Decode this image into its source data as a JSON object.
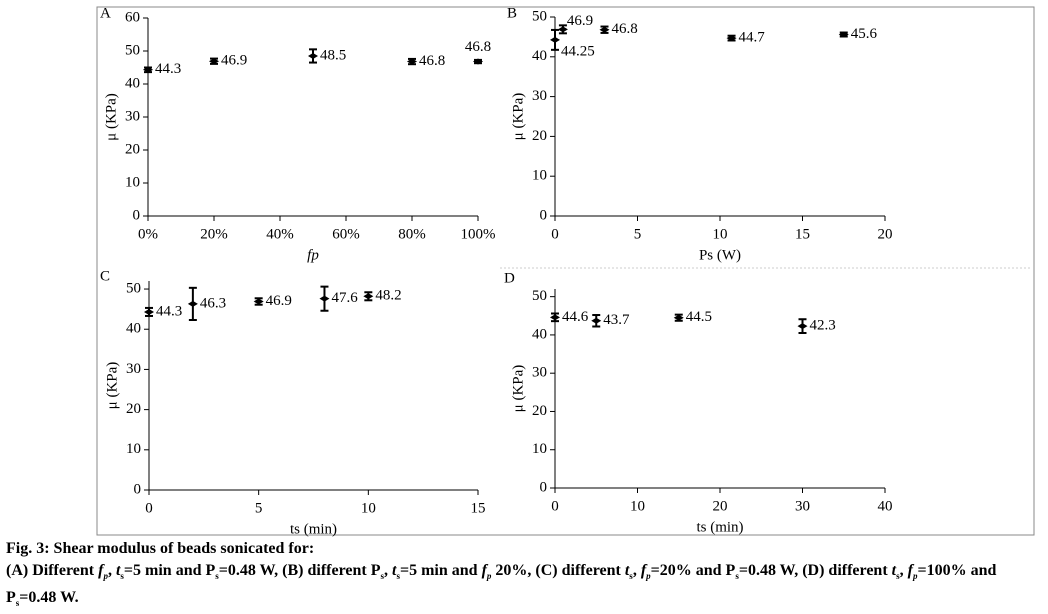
{
  "chart_data": [
    {
      "type": "scatter",
      "panel_label": "A",
      "x": [
        0,
        20,
        50,
        80,
        100
      ],
      "values": [
        44.3,
        46.9,
        48.5,
        46.8,
        46.8
      ],
      "errors": [
        0.7,
        0.8,
        2,
        0.8,
        0.5
      ],
      "xlabel": "fp",
      "ylabel": "μ (KPa)",
      "xlim": [
        0,
        100
      ],
      "ylim": [
        0,
        60
      ],
      "xticks": [
        {
          "value": 0,
          "label": "0%"
        },
        {
          "value": 20,
          "label": "20%"
        },
        {
          "value": 40,
          "label": "40%"
        },
        {
          "value": 60,
          "label": "60%"
        },
        {
          "value": 80,
          "label": "80%"
        },
        {
          "value": 100,
          "label": "100%"
        }
      ],
      "yticks": [
        0,
        10,
        20,
        30,
        40,
        50,
        60
      ],
      "color": "#000000"
    },
    {
      "type": "scatter",
      "panel_label": "B",
      "x": [
        0,
        0.48,
        3,
        10.7,
        17.5
      ],
      "values": [
        44.25,
        46.9,
        46.8,
        44.7,
        45.6
      ],
      "errors": [
        2.5,
        1,
        0.8,
        0.6,
        0.5
      ],
      "xlabel": "Ps (W)",
      "ylabel": "μ (KPa)",
      "xlim": [
        0,
        20
      ],
      "ylim": [
        0,
        50
      ],
      "xticks": [
        0,
        5,
        10,
        15,
        20
      ],
      "yticks": [
        0,
        10,
        20,
        30,
        40,
        50
      ],
      "color": "#000000"
    },
    {
      "type": "scatter",
      "panel_label": "C",
      "x": [
        0,
        2,
        5,
        8,
        10
      ],
      "values": [
        44.3,
        46.3,
        46.9,
        47.6,
        48.2
      ],
      "errors": [
        1,
        4,
        0.8,
        3,
        1
      ],
      "xlabel": "ts (min)",
      "ylabel": "μ (KPa)",
      "xlim": [
        0,
        15
      ],
      "ylim": [
        0,
        52
      ],
      "xticks": [
        0,
        5,
        10,
        15
      ],
      "yticks": [
        0,
        10,
        20,
        30,
        40,
        50
      ],
      "color": "#000000"
    },
    {
      "type": "scatter",
      "panel_label": "D",
      "x": [
        0,
        5,
        15,
        30
      ],
      "values": [
        44.6,
        43.7,
        44.5,
        42.3
      ],
      "errors": [
        1,
        1.5,
        0.8,
        1.8
      ],
      "xlabel": "ts (min)",
      "ylabel": "μ (KPa)",
      "xlim": [
        0,
        40
      ],
      "ylim": [
        0,
        52
      ],
      "xticks": [
        0,
        10,
        20,
        30,
        40
      ],
      "yticks": [
        0,
        10,
        20,
        30,
        40,
        50
      ],
      "color": "#000000"
    }
  ],
  "caption": {
    "title": "Fig. 3: Shear modulus of beads sonicated for:",
    "body": [
      {
        "text": "(A) Different "
      },
      {
        "text": "f",
        "italic": true
      },
      {
        "text": "p",
        "sub": true,
        "italic": true
      },
      {
        "text": ", "
      },
      {
        "text": "t",
        "italic": true
      },
      {
        "text": "s",
        "sub": true
      },
      {
        "text": "=5 min and P"
      },
      {
        "text": "s",
        "sub": true
      },
      {
        "text": "=0.48 W, (B) different P"
      },
      {
        "text": "s",
        "sub": true
      },
      {
        "text": ", "
      },
      {
        "text": "t",
        "italic": true
      },
      {
        "text": "s",
        "sub": true
      },
      {
        "text": "=5 min and "
      },
      {
        "text": "f",
        "italic": true
      },
      {
        "text": "p",
        "sub": true,
        "italic": true
      },
      {
        "text": " 20%, (C) different "
      },
      {
        "text": "t",
        "italic": true
      },
      {
        "text": "s",
        "sub": true
      },
      {
        "text": ", "
      },
      {
        "text": "f",
        "italic": true
      },
      {
        "text": "p",
        "sub": true,
        "italic": true
      },
      {
        "text": "=20% and P"
      },
      {
        "text": "s",
        "sub": true
      },
      {
        "text": "=0.48 W, (D) different "
      },
      {
        "text": "t",
        "italic": true
      },
      {
        "text": "s",
        "sub": true
      },
      {
        "text": ", "
      },
      {
        "text": "f",
        "italic": true
      },
      {
        "text": "p",
        "sub": true,
        "italic": true
      },
      {
        "text": "=100% and P"
      },
      {
        "text": "s",
        "sub": true
      },
      {
        "text": "=0.48 W."
      }
    ]
  }
}
